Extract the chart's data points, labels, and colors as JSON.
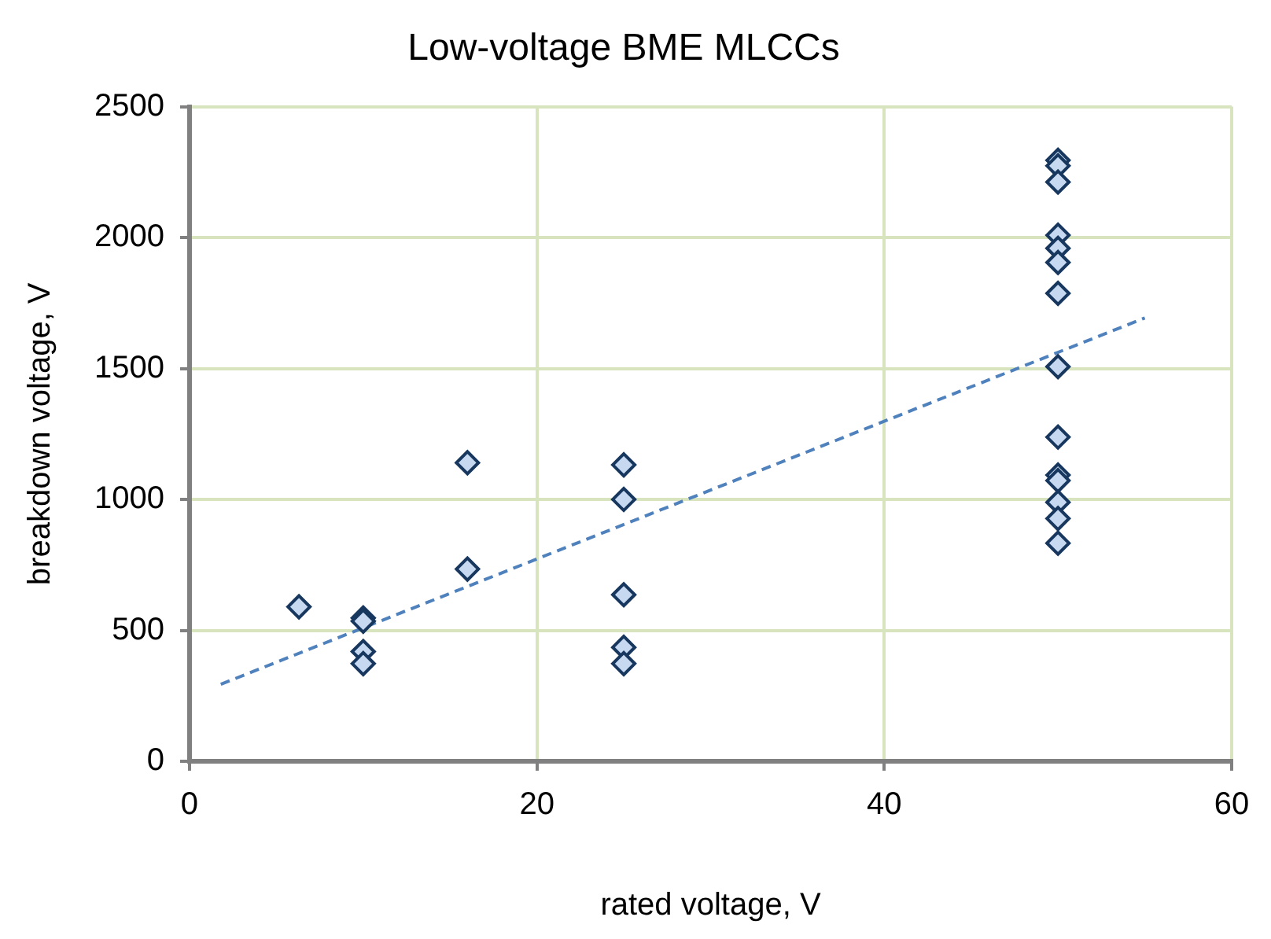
{
  "chart_data": {
    "type": "scatter",
    "title": "Low-voltage BME MLCCs",
    "xlabel": "rated voltage, V",
    "ylabel": "breakdown voltage, V",
    "xlim": [
      0,
      60
    ],
    "xticks": [
      0,
      20,
      40,
      60
    ],
    "ylim": [
      0,
      2500
    ],
    "yticks": [
      0,
      500,
      1000,
      1500,
      2000,
      2500
    ],
    "grid": true,
    "legend": false,
    "series": [
      {
        "color": "#c6d9f1",
        "marker": "diamond",
        "x": [
          6.3,
          10,
          10,
          10,
          10,
          16,
          16,
          25,
          25,
          25,
          25,
          25,
          50,
          50,
          50,
          50,
          50,
          50,
          50,
          50,
          50,
          50,
          50,
          50,
          50,
          50
        ],
        "values": [
          590,
          547,
          535,
          419,
          373,
          1140,
          734,
          1132,
          1000,
          636,
          435,
          373,
          2295,
          2274,
          2212,
          2009,
          1959,
          1905,
          1787,
          1507,
          1238,
          1093,
          1072,
          989,
          927,
          833
        ]
      },
      {
        "type": "line",
        "color": "#4f81bd",
        "marker": "none",
        "line_style": "dashed",
        "x": [
          1.8,
          55
        ],
        "values": [
          294,
          1693
        ]
      }
    ]
  }
}
